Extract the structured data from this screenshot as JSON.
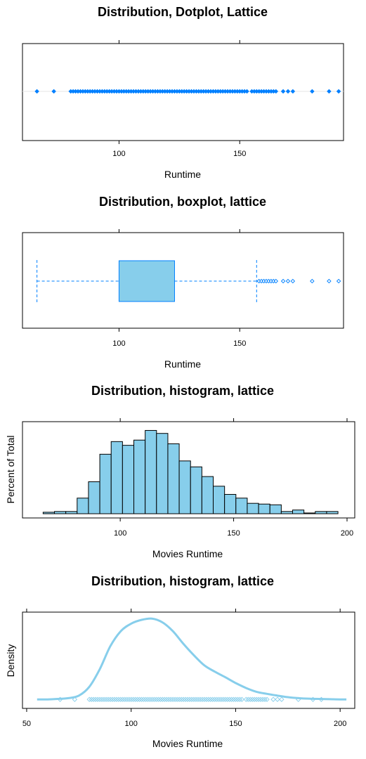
{
  "chart_data": [
    {
      "type": "scatter",
      "title": "Distribution, Dotplot, Lattice",
      "xlabel": "Runtime",
      "ylabel": "",
      "xlim": [
        60,
        193
      ],
      "xticks": [
        100,
        150
      ],
      "color": "#0080ff",
      "points": [
        66,
        73,
        80,
        81,
        82,
        83,
        84,
        85,
        86,
        87,
        88,
        89,
        90,
        91,
        92,
        93,
        94,
        95,
        96,
        97,
        98,
        99,
        100,
        101,
        102,
        103,
        104,
        105,
        106,
        107,
        108,
        109,
        110,
        111,
        112,
        113,
        114,
        115,
        116,
        117,
        118,
        119,
        120,
        121,
        122,
        123,
        124,
        125,
        126,
        127,
        128,
        129,
        130,
        131,
        132,
        133,
        134,
        135,
        136,
        137,
        138,
        139,
        140,
        141,
        142,
        143,
        144,
        145,
        146,
        147,
        148,
        149,
        150,
        151,
        152,
        153,
        155,
        156,
        157,
        158,
        159,
        160,
        161,
        162,
        163,
        164,
        165,
        168,
        170,
        172,
        180,
        187,
        191
      ]
    },
    {
      "type": "box",
      "title": "Distribution, boxplot, lattice",
      "xlabel": "Runtime",
      "ylabel": "",
      "xlim": [
        60,
        193
      ],
      "xticks": [
        100,
        150
      ],
      "fill": "#87ceeb",
      "stroke": "#0080ff",
      "whisker_low": 66,
      "q1": 100,
      "q3": 123,
      "whisker_high": 157,
      "outliers": [
        158,
        159,
        160,
        161,
        162,
        163,
        164,
        165,
        168,
        170,
        172,
        180,
        187,
        191
      ]
    },
    {
      "type": "bar",
      "title": "Distribution, histogram, lattice",
      "xlabel": "Movies Runtime",
      "ylabel": "Percent of Total",
      "xlim": [
        60,
        200
      ],
      "xticks": [
        100,
        150,
        200
      ],
      "fill": "#87ceeb",
      "bin_width": 5,
      "bin_starts": [
        66,
        71,
        76,
        81,
        86,
        91,
        96,
        101,
        106,
        111,
        116,
        121,
        126,
        131,
        136,
        141,
        146,
        151,
        156,
        161,
        166,
        171,
        176,
        181,
        186,
        191
      ],
      "values": [
        0.2,
        0.3,
        0.3,
        2.1,
        4.3,
        8.0,
        9.7,
        9.2,
        9.9,
        11.2,
        10.8,
        9.4,
        7.1,
        6.3,
        5.0,
        3.7,
        2.6,
        2.1,
        1.4,
        1.3,
        1.2,
        0.3,
        0.5,
        0.1,
        0.3,
        0.3
      ],
      "ylim": [
        0,
        12
      ]
    },
    {
      "type": "line",
      "title": "Distribution, histogram, lattice",
      "xlabel": "Movies Runtime",
      "ylabel": "Density",
      "xlim": [
        48,
        207
      ],
      "xticks": [
        50,
        100,
        150,
        200
      ],
      "color": "#87ceeb",
      "x": [
        55,
        60,
        65,
        70,
        75,
        80,
        85,
        90,
        95,
        100,
        105,
        110,
        115,
        120,
        125,
        130,
        135,
        140,
        145,
        150,
        155,
        160,
        165,
        170,
        175,
        180,
        185,
        190,
        195,
        200,
        203
      ],
      "y": [
        0.0,
        0.0,
        0.0002,
        0.0005,
        0.0015,
        0.005,
        0.012,
        0.021,
        0.027,
        0.03,
        0.0315,
        0.032,
        0.0305,
        0.027,
        0.022,
        0.0175,
        0.0135,
        0.011,
        0.0088,
        0.0065,
        0.0045,
        0.003,
        0.0022,
        0.0015,
        0.0009,
        0.0005,
        0.0003,
        0.0002,
        0.0001,
        0.0,
        0.0
      ],
      "ylim": [
        -0.003,
        0.034
      ],
      "rug": [
        66,
        73,
        80,
        81,
        82,
        83,
        84,
        85,
        86,
        87,
        88,
        89,
        90,
        91,
        92,
        93,
        94,
        95,
        96,
        97,
        98,
        99,
        100,
        101,
        102,
        103,
        104,
        105,
        106,
        107,
        108,
        109,
        110,
        111,
        112,
        113,
        114,
        115,
        116,
        117,
        118,
        119,
        120,
        121,
        122,
        123,
        124,
        125,
        126,
        127,
        128,
        129,
        130,
        131,
        132,
        133,
        134,
        135,
        136,
        137,
        138,
        139,
        140,
        141,
        142,
        143,
        144,
        145,
        146,
        147,
        148,
        149,
        150,
        151,
        152,
        153,
        155,
        156,
        157,
        158,
        159,
        160,
        161,
        162,
        163,
        164,
        165,
        168,
        170,
        172,
        180,
        187,
        191
      ]
    }
  ]
}
